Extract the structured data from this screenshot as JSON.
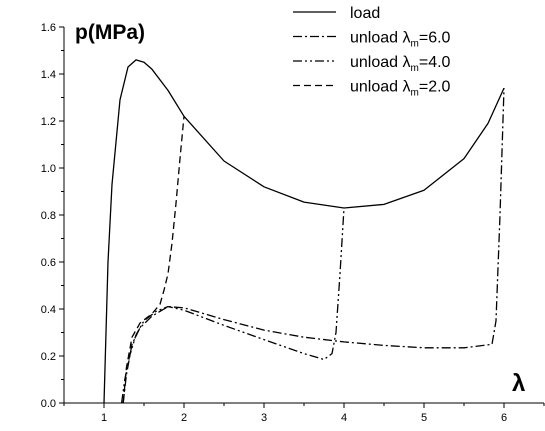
{
  "chart_data": {
    "type": "line",
    "title": "",
    "ylabel": "p(MPa)",
    "xlabel": "λ",
    "xlim": [
      0.5,
      6.5
    ],
    "ylim": [
      0.0,
      1.6
    ],
    "xticks": [
      1,
      2,
      3,
      4,
      5,
      6
    ],
    "yticks": [
      0.0,
      0.2,
      0.4,
      0.6,
      0.8,
      1.0,
      1.2,
      1.4,
      1.6
    ],
    "legend_position": "top-right",
    "series": [
      {
        "name": "load",
        "dash": "solid",
        "points": [
          [
            1.0,
            0.0
          ],
          [
            1.05,
            0.6
          ],
          [
            1.1,
            0.93
          ],
          [
            1.2,
            1.29
          ],
          [
            1.3,
            1.43
          ],
          [
            1.4,
            1.46
          ],
          [
            1.5,
            1.45
          ],
          [
            1.6,
            1.42
          ],
          [
            1.8,
            1.33
          ],
          [
            2.0,
            1.22
          ],
          [
            2.5,
            1.03
          ],
          [
            3.0,
            0.92
          ],
          [
            3.5,
            0.855
          ],
          [
            4.0,
            0.83
          ],
          [
            4.5,
            0.845
          ],
          [
            5.0,
            0.905
          ],
          [
            5.5,
            1.04
          ],
          [
            5.8,
            1.19
          ],
          [
            6.0,
            1.34
          ]
        ]
      },
      {
        "name": "unload λm=6.0",
        "label_main": "unload λ",
        "label_sub": "m",
        "label_suffix": "=6.0",
        "dash": "dashdot",
        "points": [
          [
            1.24,
            0.0
          ],
          [
            1.28,
            0.12
          ],
          [
            1.35,
            0.25
          ],
          [
            1.45,
            0.32
          ],
          [
            1.6,
            0.37
          ],
          [
            1.8,
            0.41
          ],
          [
            2.0,
            0.405
          ],
          [
            2.5,
            0.355
          ],
          [
            3.0,
            0.31
          ],
          [
            3.5,
            0.28
          ],
          [
            4.0,
            0.26
          ],
          [
            4.5,
            0.245
          ],
          [
            5.0,
            0.235
          ],
          [
            5.5,
            0.235
          ],
          [
            5.85,
            0.25
          ],
          [
            5.9,
            0.35
          ],
          [
            5.95,
            0.8
          ],
          [
            6.0,
            1.34
          ]
        ]
      },
      {
        "name": "unload λm=4.0",
        "label_main": "unload λ",
        "label_sub": "m",
        "label_suffix": "=4.0",
        "dash": "dashdotdot",
        "points": [
          [
            1.22,
            0.0
          ],
          [
            1.26,
            0.1
          ],
          [
            1.32,
            0.2
          ],
          [
            1.4,
            0.29
          ],
          [
            1.5,
            0.35
          ],
          [
            1.65,
            0.39
          ],
          [
            1.8,
            0.41
          ],
          [
            2.0,
            0.395
          ],
          [
            2.5,
            0.33
          ],
          [
            3.0,
            0.27
          ],
          [
            3.5,
            0.21
          ],
          [
            3.75,
            0.185
          ],
          [
            3.85,
            0.21
          ],
          [
            3.9,
            0.3
          ],
          [
            3.95,
            0.55
          ],
          [
            4.0,
            0.83
          ]
        ]
      },
      {
        "name": "unload λm=2.0",
        "label_main": "unload λ",
        "label_sub": "m",
        "label_suffix": "=2.0",
        "dash": "dash",
        "points": [
          [
            1.24,
            0.0
          ],
          [
            1.28,
            0.15
          ],
          [
            1.35,
            0.28
          ],
          [
            1.45,
            0.34
          ],
          [
            1.6,
            0.38
          ],
          [
            1.7,
            0.42
          ],
          [
            1.75,
            0.48
          ],
          [
            1.8,
            0.55
          ],
          [
            1.85,
            0.68
          ],
          [
            1.9,
            0.85
          ],
          [
            1.95,
            1.04
          ],
          [
            2.0,
            1.22
          ]
        ]
      }
    ]
  }
}
